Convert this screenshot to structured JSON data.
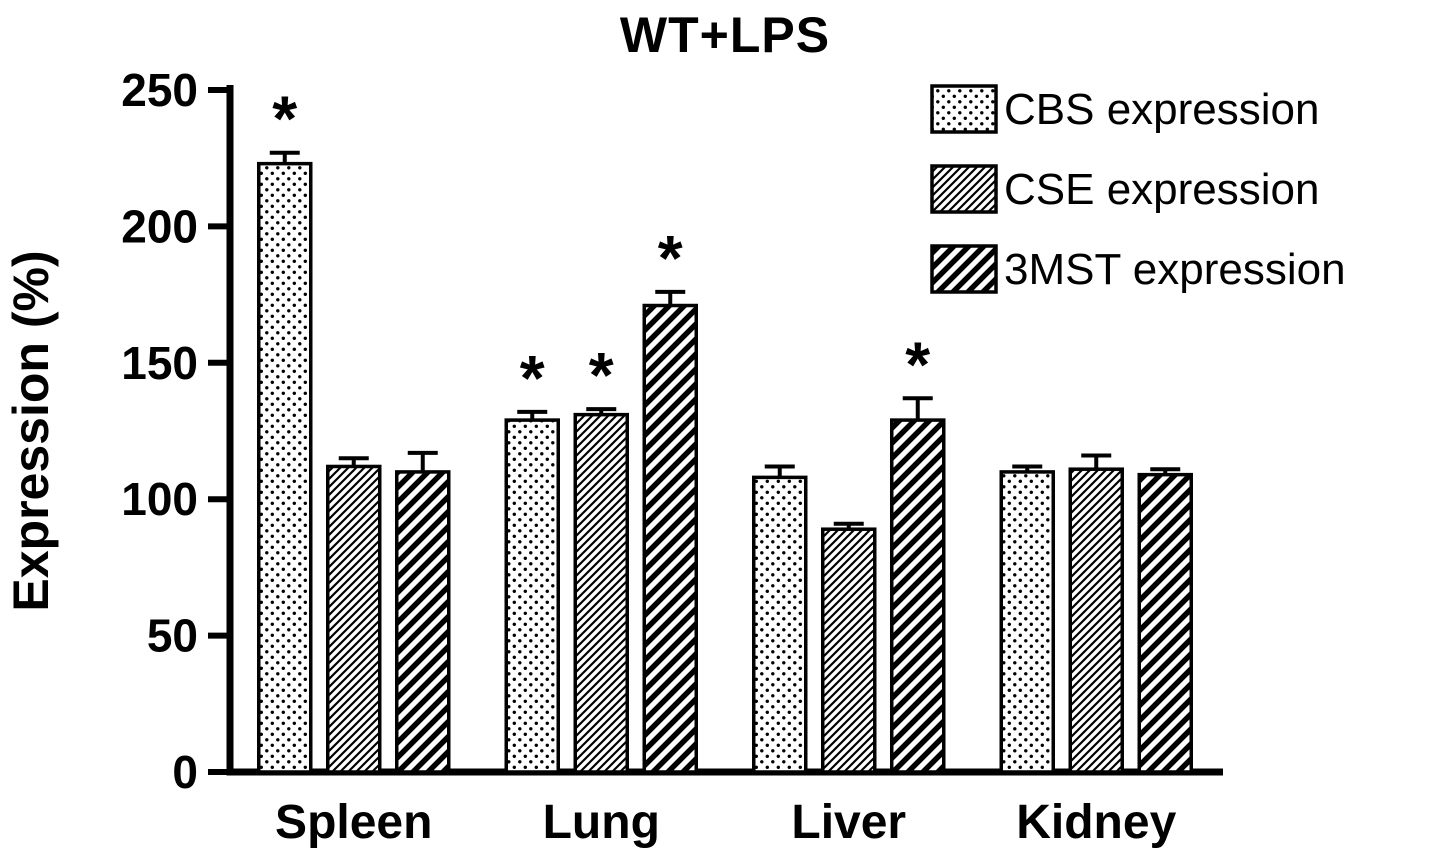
{
  "title": "WT+LPS",
  "colors": {
    "foreground": "#000000",
    "background": "#ffffff"
  },
  "chart_data": {
    "type": "bar",
    "title": "WT+LPS",
    "xlabel": "",
    "ylabel": "Expression (%)",
    "ylim": [
      0,
      250
    ],
    "yticks": [
      0,
      50,
      100,
      150,
      200,
      250
    ],
    "grid": false,
    "legend_position": "top-right",
    "significance_marker": "*",
    "categories": [
      "Spleen",
      "Lung",
      "Liver",
      "Kidney"
    ],
    "series": [
      {
        "name": "CBS expression",
        "pattern": "dots",
        "values": [
          223,
          129,
          108,
          110
        ],
        "errors": [
          4,
          3,
          4,
          2
        ],
        "significant": [
          true,
          true,
          false,
          false
        ]
      },
      {
        "name": "CSE expression",
        "pattern": "fine-hatch",
        "values": [
          112,
          131,
          89,
          111
        ],
        "errors": [
          3,
          2,
          2,
          5
        ],
        "significant": [
          false,
          true,
          false,
          false
        ]
      },
      {
        "name": "3MST expression",
        "pattern": "wide-hatch",
        "values": [
          110,
          171,
          129,
          109
        ],
        "errors": [
          7,
          5,
          8,
          2
        ],
        "significant": [
          false,
          true,
          true,
          false
        ]
      }
    ]
  }
}
